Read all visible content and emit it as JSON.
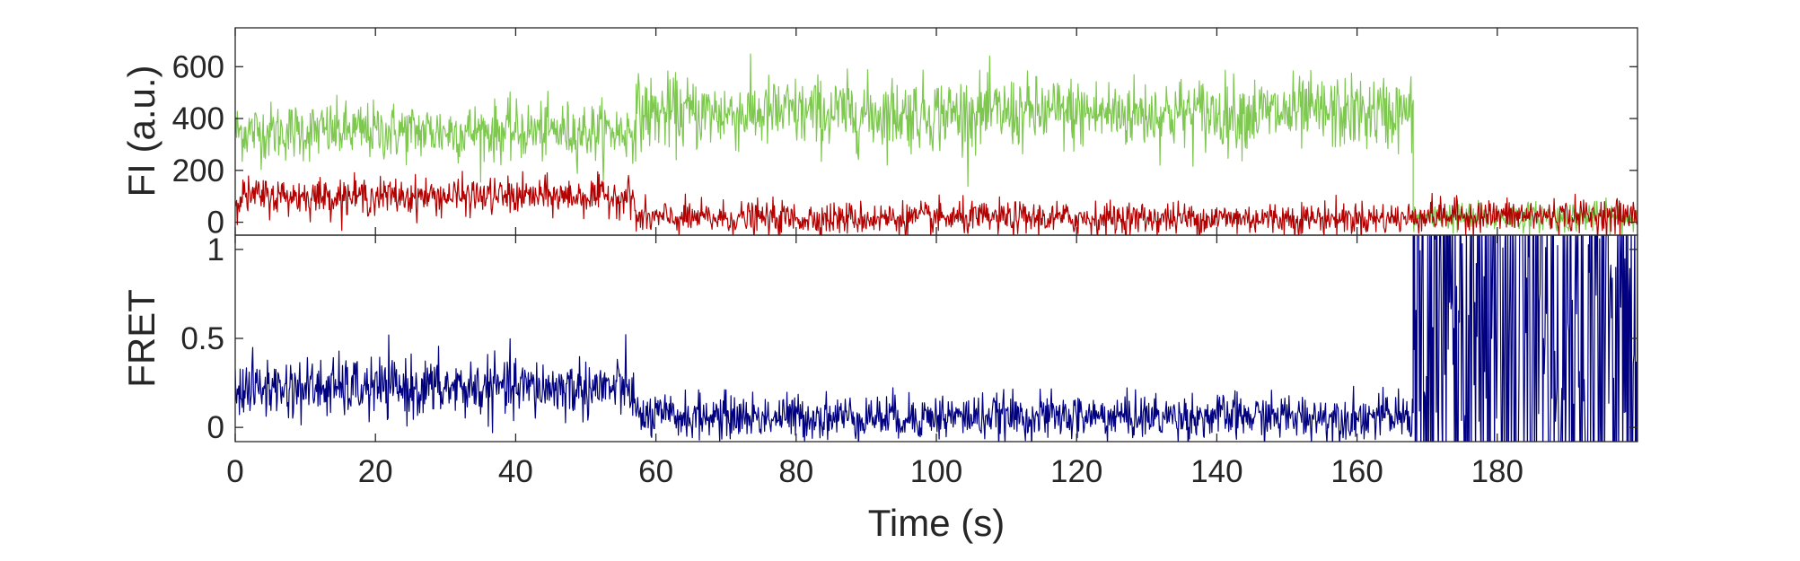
{
  "chart_data": [
    {
      "type": "line",
      "panel": "top",
      "ylabel": "FI (a.u.)",
      "xlabel": "",
      "xlim": [
        0,
        200
      ],
      "ylim": [
        -50,
        750
      ],
      "xticks": [
        0,
        20,
        40,
        60,
        80,
        100,
        120,
        140,
        160,
        180
      ],
      "yticks": [
        0,
        200,
        400,
        600
      ],
      "ytick_labels": [
        "0",
        "200",
        "400",
        "600"
      ],
      "grid": false,
      "legend": "none",
      "series": [
        {
          "color": "#7ec850",
          "segments": [
            {
              "x_start": 0,
              "x_end": 57,
              "mean": 350,
              "noise": 80
            },
            {
              "x_start": 57,
              "x_end": 168,
              "mean": 420,
              "noise": 100
            },
            {
              "x_start": 168,
              "x_end": 200,
              "mean": 20,
              "noise": 40
            }
          ]
        },
        {
          "color": "#b30000",
          "segments": [
            {
              "x_start": 0,
              "x_end": 57,
              "mean": 100,
              "noise": 50
            },
            {
              "x_start": 57,
              "x_end": 168,
              "mean": 15,
              "noise": 45
            },
            {
              "x_start": 168,
              "x_end": 200,
              "mean": 25,
              "noise": 45
            }
          ]
        }
      ]
    },
    {
      "type": "line",
      "panel": "bottom",
      "ylabel": "FRET",
      "xlabel": "Time (s)",
      "xlim": [
        0,
        200
      ],
      "ylim": [
        -0.08,
        1.08
      ],
      "xticks": [
        0,
        20,
        40,
        60,
        80,
        100,
        120,
        140,
        160,
        180
      ],
      "xtick_labels": [
        "0",
        "20",
        "40",
        "60",
        "80",
        "100",
        "120",
        "140",
        "160",
        "180"
      ],
      "yticks": [
        0,
        0.5,
        1
      ],
      "ytick_labels": [
        "0",
        "0.5",
        "1"
      ],
      "grid": false,
      "legend": "none",
      "series": [
        {
          "color": "#000080",
          "segments": [
            {
              "x_start": 0,
              "x_end": 57,
              "mean": 0.22,
              "noise": 0.12
            },
            {
              "x_start": 57,
              "x_end": 168,
              "mean": 0.06,
              "noise": 0.09
            },
            {
              "x_start": 168,
              "x_end": 200,
              "mean": 0.5,
              "noise": 0.6
            }
          ]
        }
      ]
    }
  ]
}
